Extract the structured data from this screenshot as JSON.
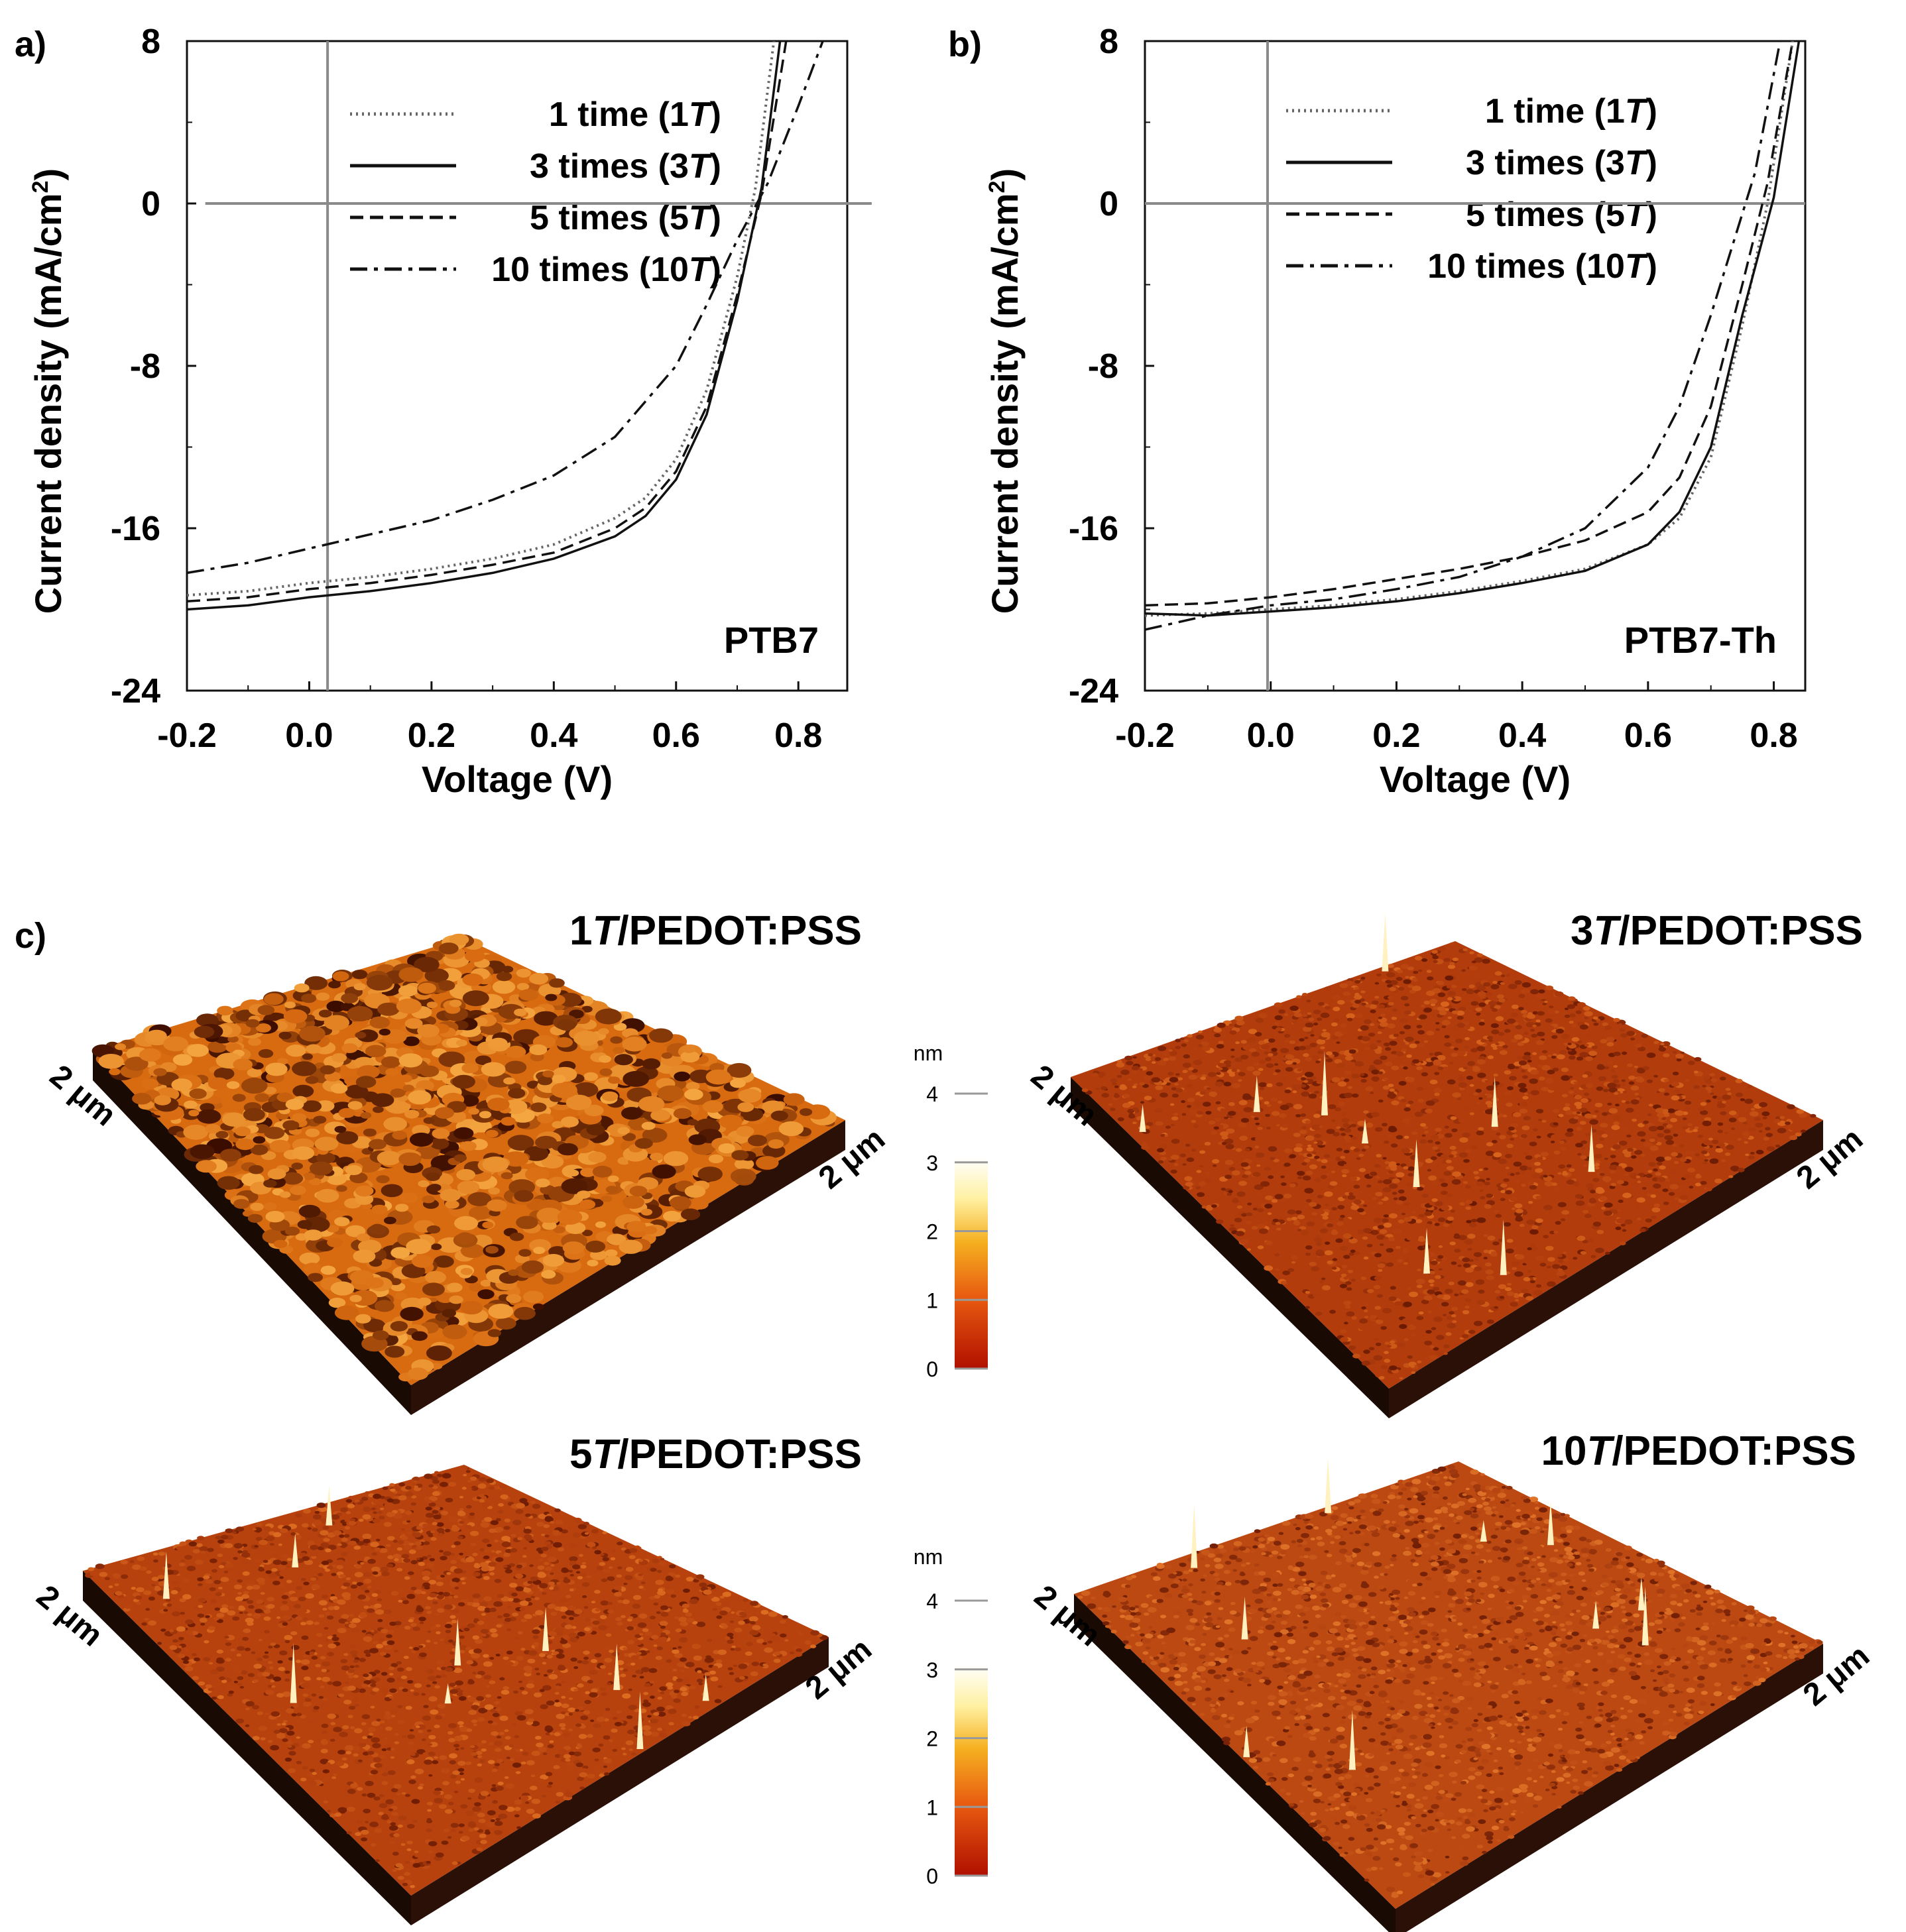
{
  "chart_data": [
    {
      "panel_label": "a)",
      "type": "line",
      "title": "",
      "annotation": "PTB7",
      "xlabel": "Voltage (V)",
      "ylabel_main": "Current density (mA/cm",
      "ylabel_sup": "2",
      "ylabel_close": ")",
      "xlim": [
        -0.2,
        0.88
      ],
      "ylim": [
        -24,
        8
      ],
      "xticks": [
        -0.2,
        0.0,
        0.2,
        0.4,
        0.6,
        0.8
      ],
      "xtick_labels": [
        "-0.2",
        "0.0",
        "0.2",
        "0.4",
        "0.6",
        "0.8"
      ],
      "yticks": [
        -24,
        -16,
        -8,
        0,
        8
      ],
      "ytick_labels": [
        "-24",
        "-16",
        "-8",
        "0",
        "8"
      ],
      "ref_lines": {
        "vertical_x": 0.03,
        "horizontal_y": 0,
        "h_start_x": -0.17,
        "h_end_x": 0.92
      },
      "legend_position": "top-right",
      "series": [
        {
          "name": "1 time (1T)",
          "legend_main": "1 time (1",
          "legend_t": "T",
          "legend_close": ")",
          "style": "dotted",
          "color": "#666666",
          "x": [
            -0.2,
            -0.1,
            0.0,
            0.1,
            0.2,
            0.3,
            0.4,
            0.5,
            0.55,
            0.6,
            0.65,
            0.7,
            0.73,
            0.76
          ],
          "y": [
            -19.3,
            -19.1,
            -18.7,
            -18.4,
            -18.0,
            -17.5,
            -16.8,
            -15.5,
            -14.5,
            -12.6,
            -9.2,
            -3.6,
            0.8,
            8.0
          ]
        },
        {
          "name": "3 times (3T)",
          "legend_main": "3 times (3",
          "legend_t": "T",
          "legend_close": ")",
          "style": "solid",
          "color": "#111111",
          "x": [
            -0.2,
            -0.1,
            0.0,
            0.1,
            0.2,
            0.3,
            0.4,
            0.5,
            0.55,
            0.6,
            0.65,
            0.7,
            0.74,
            0.77
          ],
          "y": [
            -20.0,
            -19.8,
            -19.4,
            -19.1,
            -18.7,
            -18.2,
            -17.5,
            -16.4,
            -15.4,
            -13.6,
            -10.4,
            -4.8,
            0.8,
            8.0
          ]
        },
        {
          "name": "5 times (5T)",
          "legend_main": "5 times (5",
          "legend_t": "T",
          "legend_close": ")",
          "style": "dashed",
          "color": "#111111",
          "x": [
            -0.2,
            -0.1,
            0.0,
            0.1,
            0.2,
            0.3,
            0.4,
            0.5,
            0.55,
            0.6,
            0.65,
            0.7,
            0.74,
            0.78
          ],
          "y": [
            -19.6,
            -19.4,
            -19.0,
            -18.7,
            -18.3,
            -17.8,
            -17.2,
            -16.0,
            -15.0,
            -13.2,
            -10.0,
            -4.5,
            0.5,
            8.0
          ]
        },
        {
          "name": "10 times (10T)",
          "legend_main": "10 times (10",
          "legend_t": "T",
          "legend_close": ")",
          "style": "dashdot",
          "color": "#111111",
          "x": [
            -0.2,
            -0.1,
            0.0,
            0.1,
            0.2,
            0.3,
            0.4,
            0.5,
            0.6,
            0.65,
            0.7,
            0.75,
            0.8,
            0.84
          ],
          "y": [
            -18.2,
            -17.7,
            -17.0,
            -16.3,
            -15.6,
            -14.6,
            -13.4,
            -11.5,
            -8.0,
            -5.0,
            -1.8,
            1.0,
            4.8,
            8.0
          ]
        }
      ]
    },
    {
      "panel_label": "b)",
      "type": "line",
      "title": "",
      "annotation": "PTB7-Th",
      "xlabel": "Voltage (V)",
      "ylabel_main": "Current density (mA/cm",
      "ylabel_sup": "2",
      "ylabel_close": ")",
      "xlim": [
        -0.2,
        0.85
      ],
      "ylim": [
        -24,
        8
      ],
      "xticks": [
        -0.2,
        0.0,
        0.2,
        0.4,
        0.6,
        0.8
      ],
      "xtick_labels": [
        "-0.2",
        "0.0",
        "0.2",
        "0.4",
        "0.6",
        "0.8"
      ],
      "yticks": [
        -24,
        -16,
        -8,
        0,
        8
      ],
      "ytick_labels": [
        "-24",
        "-16",
        "-8",
        "0",
        "8"
      ],
      "ref_lines": {
        "vertical_x": -0.005,
        "horizontal_y": 0,
        "h_start_x": -0.2,
        "h_end_x": 0.85
      },
      "legend_position": "top-right",
      "series": [
        {
          "name": "1 time (1T)",
          "legend_main": "1 time (1",
          "legend_t": "T",
          "legend_close": ")",
          "style": "dotted",
          "color": "#666666",
          "x": [
            -0.2,
            -0.1,
            0.0,
            0.1,
            0.2,
            0.3,
            0.4,
            0.5,
            0.6,
            0.65,
            0.7,
            0.75,
            0.79,
            0.83
          ],
          "y": [
            -20.3,
            -20.2,
            -20.0,
            -19.8,
            -19.5,
            -19.1,
            -18.6,
            -18.0,
            -16.8,
            -15.5,
            -12.5,
            -6.0,
            0.0,
            8.0
          ]
        },
        {
          "name": "3 times (3T)",
          "legend_main": "3 times (3",
          "legend_t": "T",
          "legend_close": ")",
          "style": "solid",
          "color": "#111111",
          "x": [
            -0.2,
            -0.1,
            0.0,
            0.1,
            0.2,
            0.3,
            0.4,
            0.5,
            0.6,
            0.65,
            0.7,
            0.75,
            0.8,
            0.84
          ],
          "y": [
            -20.2,
            -20.3,
            -20.1,
            -19.9,
            -19.6,
            -19.2,
            -18.7,
            -18.1,
            -16.8,
            -15.2,
            -12.0,
            -5.5,
            0.3,
            8.0
          ]
        },
        {
          "name": "5 times (5T)",
          "legend_main": "5 times (5",
          "legend_t": "T",
          "legend_close": ")",
          "style": "dashed",
          "color": "#111111",
          "x": [
            -0.2,
            -0.1,
            0.0,
            0.1,
            0.2,
            0.3,
            0.4,
            0.5,
            0.6,
            0.65,
            0.7,
            0.75,
            0.79,
            0.83
          ],
          "y": [
            -19.8,
            -19.7,
            -19.4,
            -19.0,
            -18.5,
            -18.0,
            -17.4,
            -16.6,
            -15.2,
            -13.5,
            -10.0,
            -4.0,
            1.0,
            8.0
          ]
        },
        {
          "name": "10 times (10T)",
          "legend_main": "10 times (10",
          "legend_t": "T",
          "legend_close": ")",
          "style": "dashdot",
          "color": "#111111",
          "x": [
            -0.2,
            -0.1,
            0.0,
            0.1,
            0.2,
            0.3,
            0.4,
            0.5,
            0.6,
            0.65,
            0.7,
            0.74,
            0.77,
            0.81
          ],
          "y": [
            -21.0,
            -20.3,
            -19.8,
            -19.5,
            -19.0,
            -18.4,
            -17.4,
            -16.0,
            -13.0,
            -10.0,
            -5.5,
            -1.5,
            1.5,
            8.0
          ]
        }
      ]
    }
  ],
  "afm": {
    "panel_label": "c)",
    "images": [
      {
        "title_num": "1",
        "title_t": "T",
        "title_rest": "/PEDOT:PSS",
        "left_axis": "2 μm",
        "right_axis": "2 μm",
        "roughness": "high",
        "base_color": "#d86a10",
        "peak_color": "#f4a640",
        "valley_color": "#3a0c00"
      },
      {
        "title_num": "3",
        "title_t": "T",
        "title_rest": "/PEDOT:PSS",
        "left_axis": "2 μm",
        "right_axis": "2 μm",
        "roughness": "low",
        "base_color": "#b23c0c",
        "peak_color": "#d8641c",
        "valley_color": "#6a1a04"
      },
      {
        "title_num": "5",
        "title_t": "T",
        "title_rest": "/PEDOT:PSS",
        "left_axis": "2 μm",
        "right_axis": "2 μm",
        "roughness": "low",
        "base_color": "#b8420e",
        "peak_color": "#dc6c20",
        "valley_color": "#6e1c04"
      },
      {
        "title_num": "10",
        "title_t": "T",
        "title_rest": "/PEDOT:PSS",
        "left_axis": "2 μm",
        "right_axis": "2 μm",
        "roughness": "low",
        "base_color": "#bc4812",
        "peak_color": "#e07428",
        "valley_color": "#701e06"
      }
    ],
    "colorbars": [
      {
        "unit": "nm",
        "ticks": [
          "0",
          "1",
          "2",
          "3",
          "4"
        ]
      },
      {
        "unit": "nm",
        "ticks": [
          "0",
          "1",
          "2",
          "3",
          "4"
        ]
      }
    ]
  }
}
